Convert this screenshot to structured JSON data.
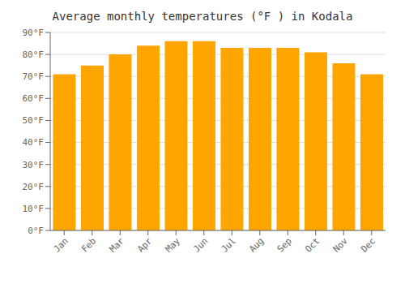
{
  "chart_data": {
    "type": "bar",
    "title": "Average monthly temperatures (°F ) in Kodala",
    "categories": [
      "Jan",
      "Feb",
      "Mar",
      "Apr",
      "May",
      "Jun",
      "Jul",
      "Aug",
      "Sep",
      "Oct",
      "Nov",
      "Dec"
    ],
    "values": [
      71,
      75,
      80,
      84,
      86,
      86,
      83,
      83,
      83,
      81,
      76,
      71
    ],
    "color": "#FFA500",
    "ylim": [
      0,
      90
    ],
    "yticks": [
      {
        "value": 0,
        "label": "0°F"
      },
      {
        "value": 10,
        "label": "10°F"
      },
      {
        "value": 20,
        "label": "20°F"
      },
      {
        "value": 30,
        "label": "30°F"
      },
      {
        "value": 40,
        "label": "40°F"
      },
      {
        "value": 50,
        "label": "50°F"
      },
      {
        "value": 60,
        "label": "60°F"
      },
      {
        "value": 70,
        "label": "70°F"
      },
      {
        "value": 80,
        "label": "80°F"
      },
      {
        "value": 90,
        "label": "90°F"
      }
    ],
    "grid": true
  }
}
